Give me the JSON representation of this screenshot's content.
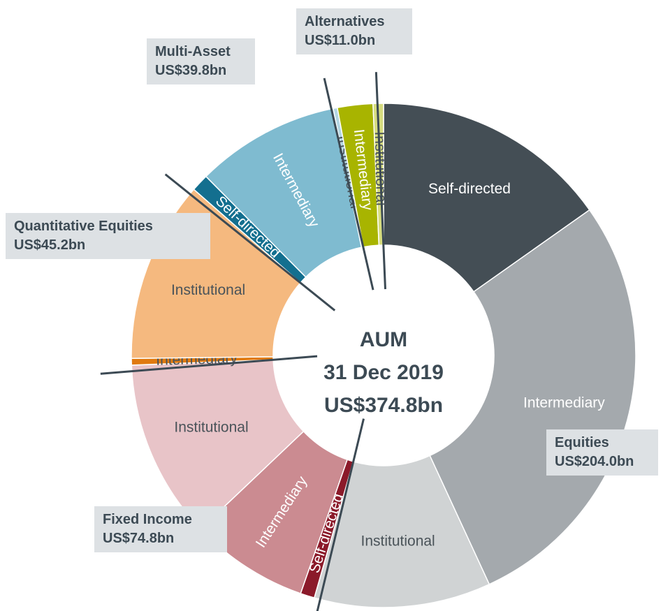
{
  "chart_data": {
    "type": "donut",
    "center_label": [
      "AUM",
      "31 Dec 2019",
      "US$374.8bn"
    ],
    "groups": [
      {
        "name": "Equities",
        "label": "US$204.0bn",
        "segments": [
          {
            "name": "Self-directed",
            "value": 57.0,
            "color": "#444e55"
          },
          {
            "name": "Intermediary",
            "value": 104.6,
            "color": "#a4a9ad"
          },
          {
            "name": "Institutional",
            "value": 42.4,
            "color": "#d0d3d4"
          }
        ]
      },
      {
        "name": "Fixed Income",
        "label": "US$74.8bn",
        "segments": [
          {
            "name": "Self-directed",
            "value": 3.4,
            "color": "#8b1a2a"
          },
          {
            "name": "Intermediary",
            "value": 28.4,
            "color": "#cb8b91"
          },
          {
            "name": "Institutional",
            "value": 43.0,
            "color": "#e8c4c8"
          }
        ]
      },
      {
        "name": "Quantitative Equities",
        "label": "US$45.2bn",
        "segments": [
          {
            "name": "Intermediary",
            "value": 1.6,
            "color": "#e07a10"
          },
          {
            "name": "Institutional",
            "value": 43.6,
            "color": "#f5b97f"
          }
        ]
      },
      {
        "name": "Multi-Asset",
        "label": "US$39.8bn",
        "segments": [
          {
            "name": "Self-directed",
            "value": 4.2,
            "color": "#136f8f"
          },
          {
            "name": "Intermediary",
            "value": 34.6,
            "color": "#7fbbd0"
          },
          {
            "name": "Institutional",
            "value": 1.0,
            "color": "#b3d6e3"
          }
        ]
      },
      {
        "name": "Alternatives",
        "label": "US$11.0bn",
        "segments": [
          {
            "name": "Intermediary",
            "value": 8.5,
            "color": "#a8b400"
          },
          {
            "name": "Institutional",
            "value": 2.5,
            "color": "#d6dc7f"
          }
        ]
      }
    ]
  }
}
